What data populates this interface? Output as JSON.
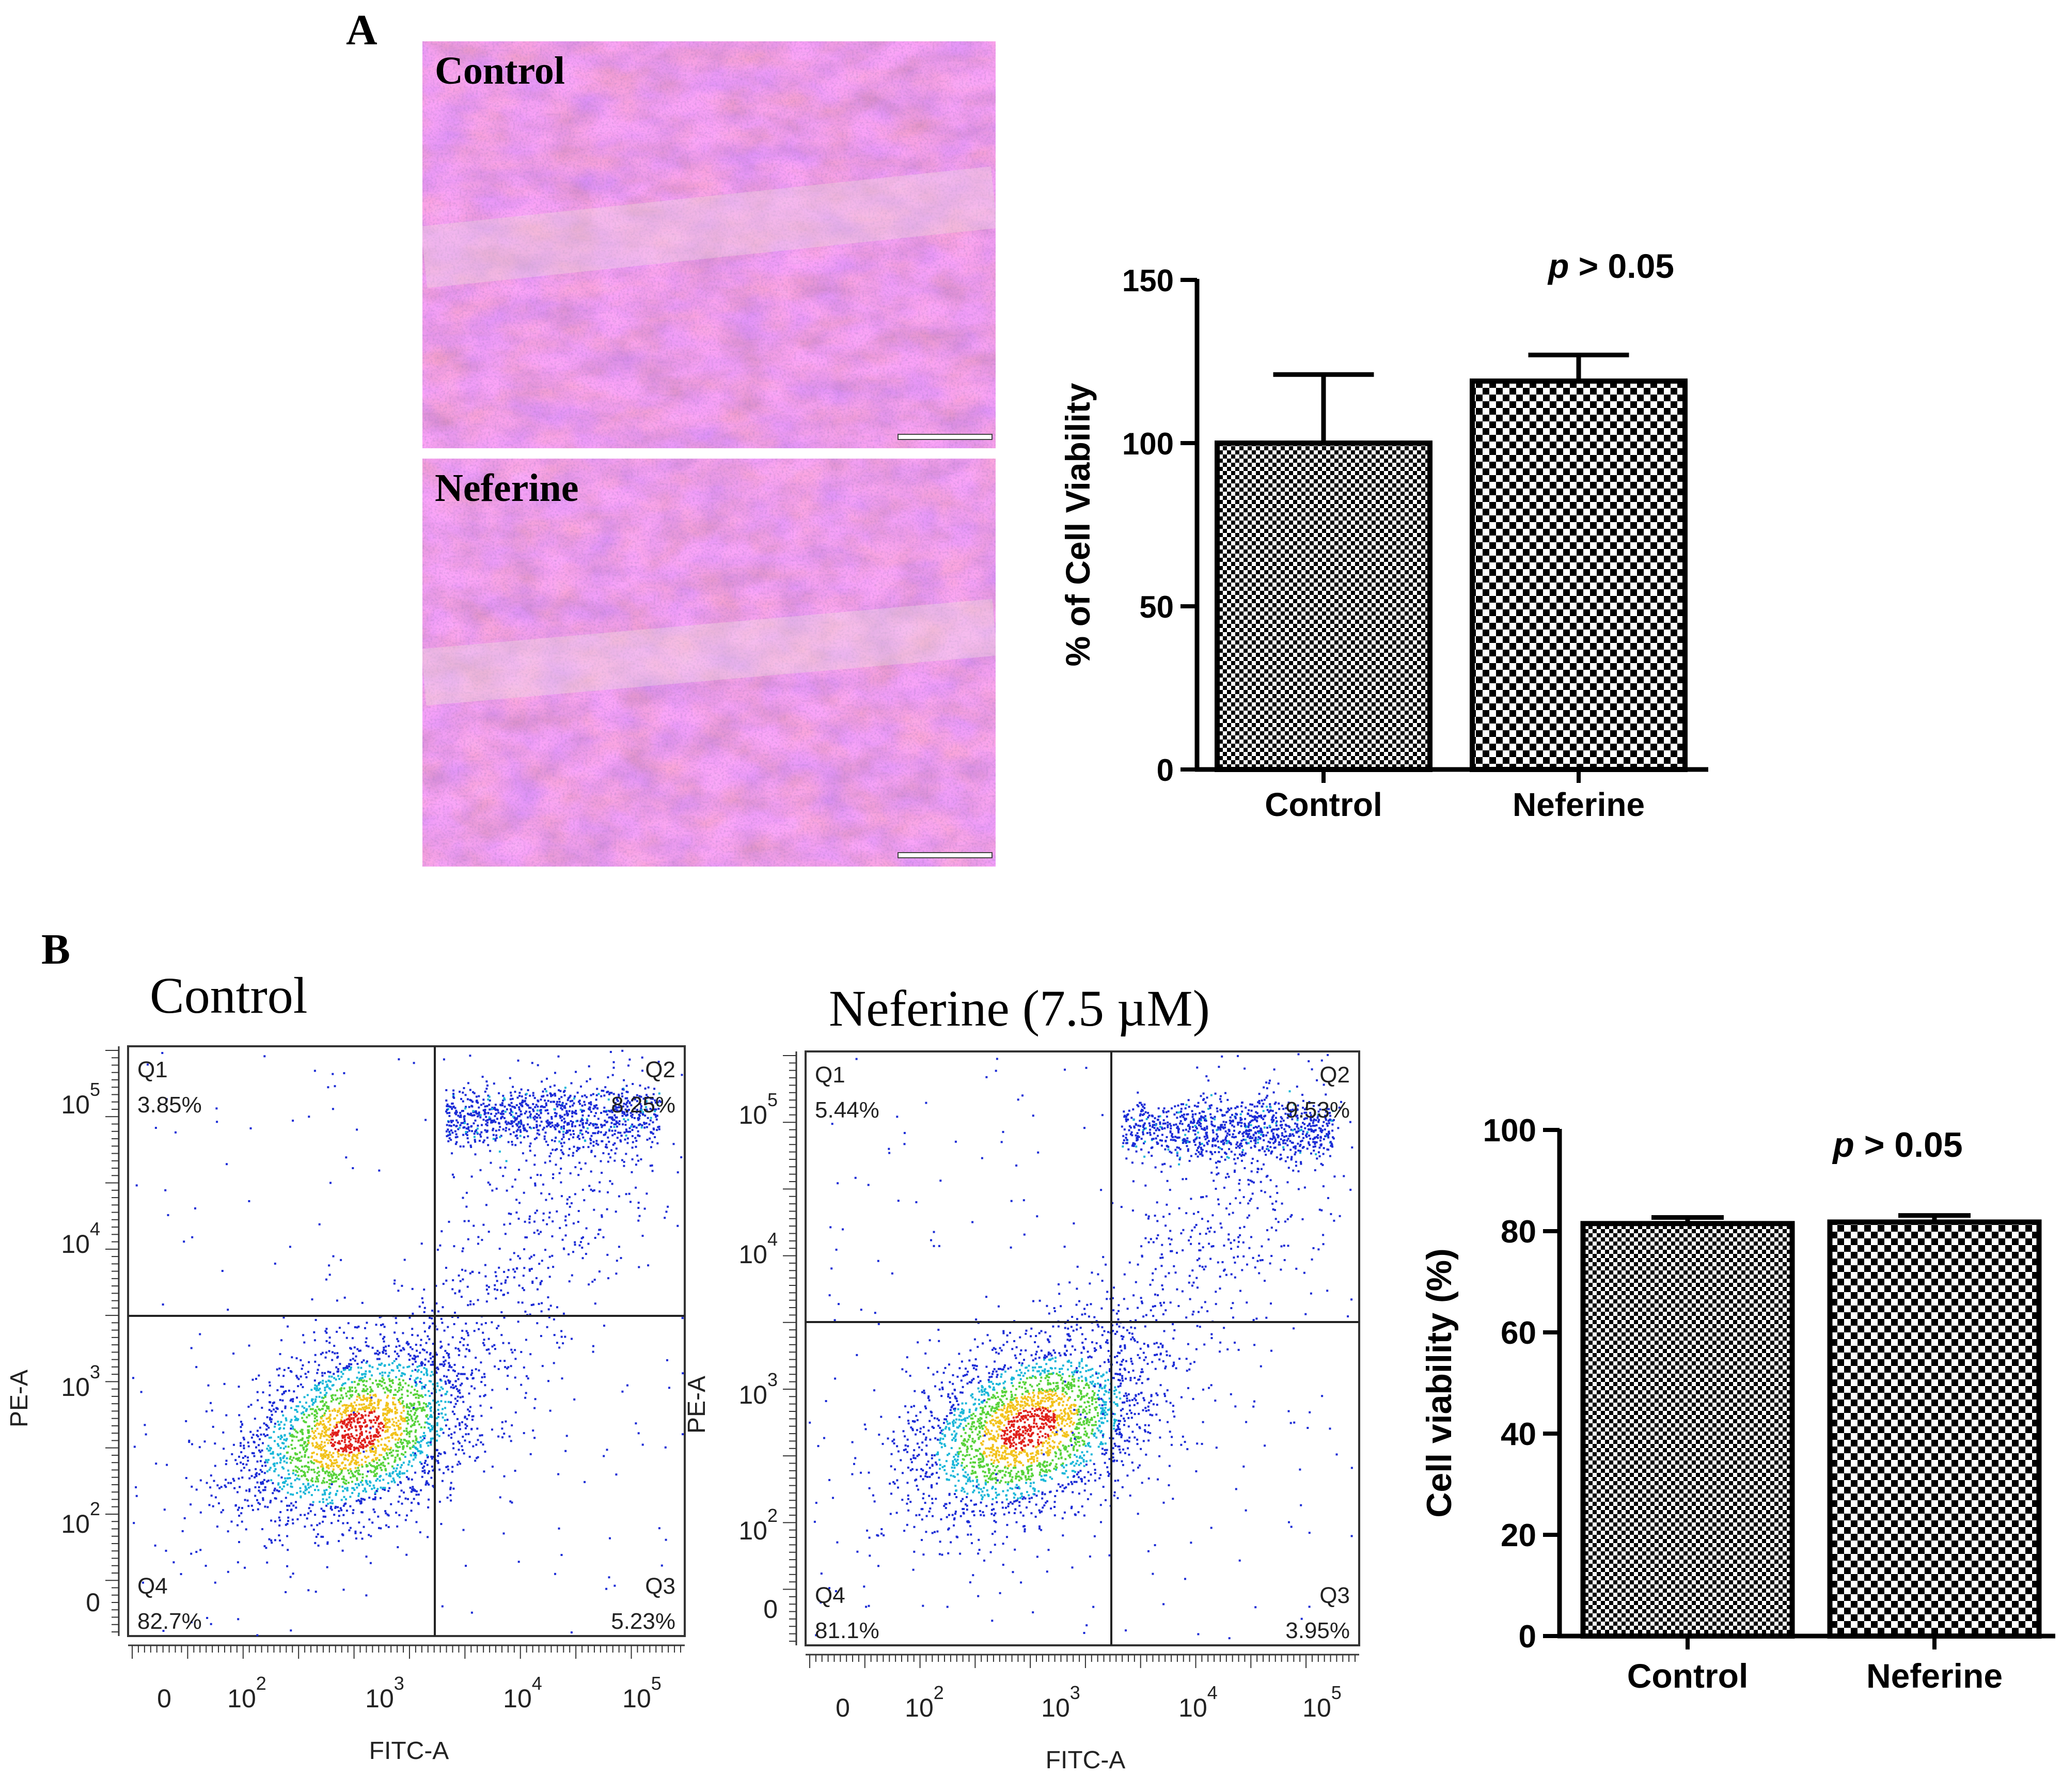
{
  "panel_a": {
    "letter": "A",
    "micro_top_label": "Control",
    "micro_bottom_label": "Neferine"
  },
  "panel_b": {
    "letter": "B",
    "flow_left_title": "Control",
    "flow_right_title": "Neferine (7.5 µM)"
  },
  "chart_data": [
    {
      "id": "migration",
      "type": "bar",
      "categories": [
        "Control",
        "Neferine"
      ],
      "values": [
        100,
        119
      ],
      "errors": [
        21,
        8
      ],
      "ylabel": "% of Cell Viability",
      "ylim": [
        0,
        150
      ],
      "yticks": [
        0,
        50,
        100,
        150
      ],
      "annotation_p": "p",
      "annotation_rest": "> 0.05",
      "patterns": [
        "fine-checker",
        "coarse-checker"
      ]
    },
    {
      "id": "flow-control",
      "type": "scatter",
      "title": "Control",
      "xlabel": "FITC-A",
      "ylabel": "PE-A",
      "x_ticks": [
        "0",
        "10",
        "10",
        "10",
        "10"
      ],
      "x_tick_exp": [
        "",
        "2",
        "3",
        "4",
        "5"
      ],
      "y_ticks": [
        "0",
        "10",
        "10",
        "10",
        "10"
      ],
      "y_tick_exp": [
        "",
        "2",
        "3",
        "4",
        "5"
      ],
      "quadrants": [
        {
          "name": "Q1",
          "value": "3.85%"
        },
        {
          "name": "Q2",
          "value": "8.25%"
        },
        {
          "name": "Q3",
          "value": "5.23%"
        },
        {
          "name": "Q4",
          "value": "82.7%"
        }
      ]
    },
    {
      "id": "flow-neferine",
      "type": "scatter",
      "title": "Neferine (7.5 µM)",
      "xlabel": "FITC-A",
      "ylabel": "PE-A",
      "x_ticks": [
        "0",
        "10",
        "10",
        "10",
        "10"
      ],
      "x_tick_exp": [
        "",
        "2",
        "3",
        "4",
        "5"
      ],
      "y_ticks": [
        "0",
        "10",
        "10",
        "10",
        "10"
      ],
      "y_tick_exp": [
        "",
        "2",
        "3",
        "4",
        "5"
      ],
      "quadrants": [
        {
          "name": "Q1",
          "value": "5.44%"
        },
        {
          "name": "Q2",
          "value": "9.53%"
        },
        {
          "name": "Q3",
          "value": "3.95%"
        },
        {
          "name": "Q4",
          "value": "81.1%"
        }
      ]
    },
    {
      "id": "apoptosis",
      "type": "bar",
      "categories": [
        "Control",
        "Neferine"
      ],
      "values": [
        81.5,
        81.8
      ],
      "errors": [
        1.2,
        1.3
      ],
      "ylabel": "Cell viability (%)",
      "ylim": [
        0,
        100
      ],
      "yticks": [
        0,
        20,
        40,
        60,
        80,
        100
      ],
      "annotation_p": "p",
      "annotation_rest": "> 0.05",
      "patterns": [
        "fine-checker",
        "coarse-checker"
      ]
    }
  ]
}
